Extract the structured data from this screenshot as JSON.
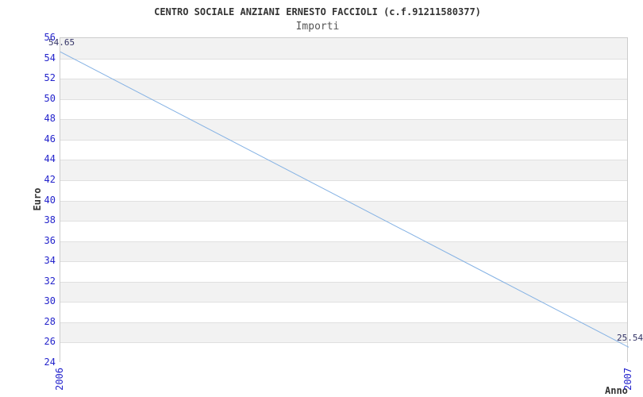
{
  "chart_data": {
    "type": "line",
    "title": "CENTRO SOCIALE ANZIANI ERNESTO FACCIOLI (c.f.91211580377)",
    "subtitle": "Importi",
    "xlabel": "Anno",
    "ylabel": "Euro",
    "categories": [
      "2006",
      "2007"
    ],
    "series": [
      {
        "name": "Importi",
        "values": [
          54.65,
          25.54
        ]
      }
    ],
    "point_labels": [
      "54.65",
      "25.54"
    ],
    "ylim": [
      24,
      56
    ],
    "ytick_step": 2,
    "yticks": [
      56,
      54,
      52,
      50,
      48,
      46,
      44,
      42,
      40,
      38,
      36,
      34,
      32,
      30,
      28,
      26,
      24
    ],
    "grid": "horizontal-bands",
    "legend": "none",
    "colors": {
      "line": "#85b2e4",
      "band_fill": "#f2f2f2",
      "band_alt_fill": "#ffffff",
      "gridline": "#e0e0e0",
      "plot_border": "#cccccc",
      "tick_text": "#2323cc",
      "value_text": "#333366",
      "title_text": "#333333",
      "subtitle_text": "#555555",
      "background": "#ffffff"
    }
  }
}
